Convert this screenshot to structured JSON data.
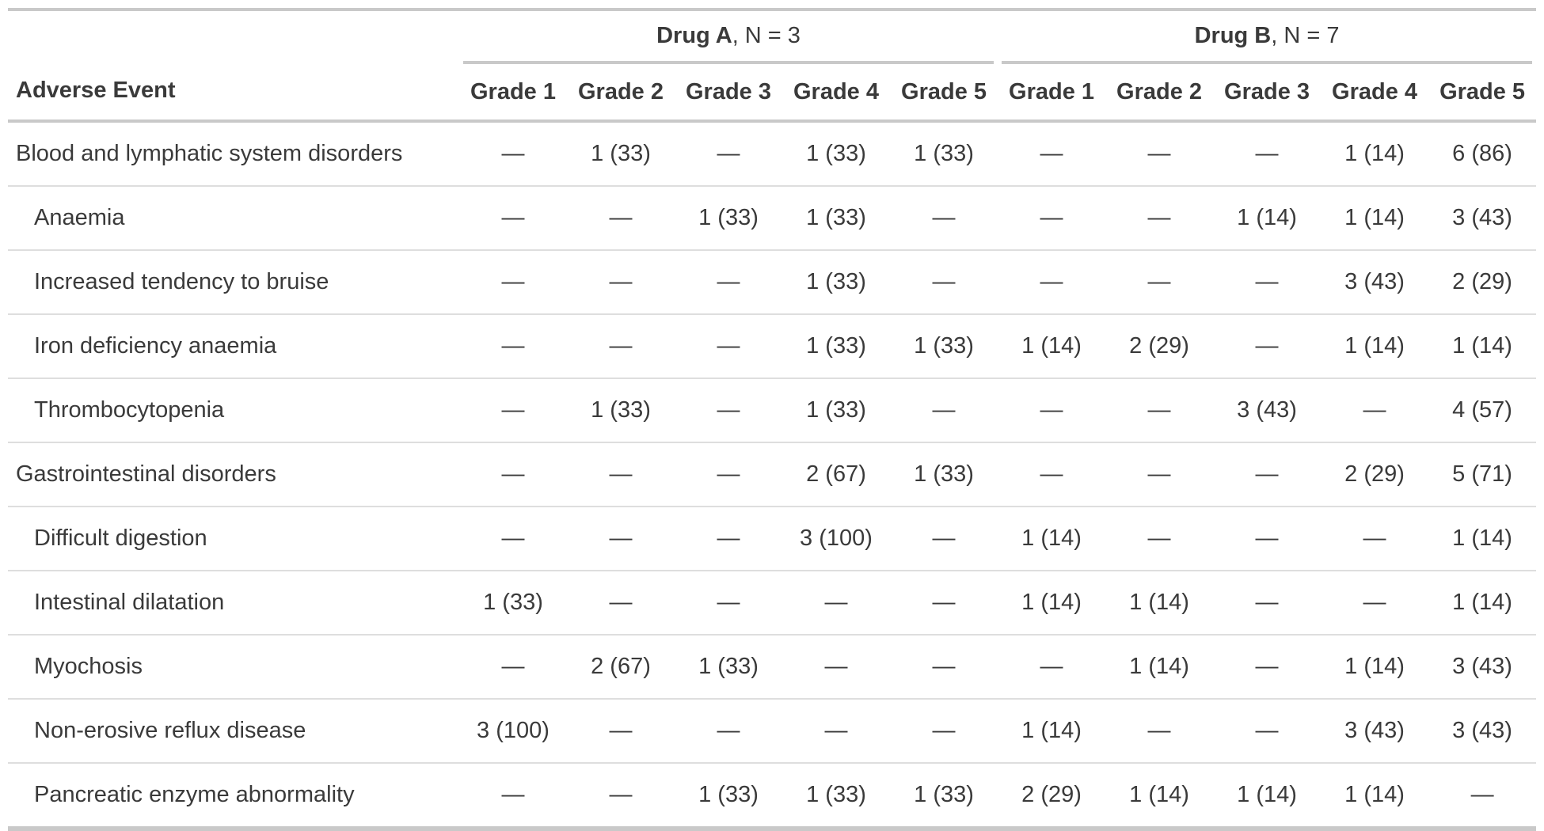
{
  "chart_data": {
    "type": "table",
    "stub_header": "Adverse Event",
    "spanners": [
      {
        "label_bold": "Drug A",
        "label_rest": ", N = 3"
      },
      {
        "label_bold": "Drug B",
        "label_rest": ", N = 7"
      }
    ],
    "grade_labels": [
      "Grade 1",
      "Grade 2",
      "Grade 3",
      "Grade 4",
      "Grade 5"
    ],
    "rows": [
      {
        "label": "Blood and lymphatic system disorders",
        "indent": false,
        "drug_a": [
          "—",
          "1 (33)",
          "—",
          "1 (33)",
          "1 (33)"
        ],
        "drug_b": [
          "—",
          "—",
          "—",
          "1 (14)",
          "6 (86)"
        ]
      },
      {
        "label": "Anaemia",
        "indent": true,
        "drug_a": [
          "—",
          "—",
          "1 (33)",
          "1 (33)",
          "—"
        ],
        "drug_b": [
          "—",
          "—",
          "1 (14)",
          "1 (14)",
          "3 (43)"
        ]
      },
      {
        "label": "Increased tendency to bruise",
        "indent": true,
        "drug_a": [
          "—",
          "—",
          "—",
          "1 (33)",
          "—"
        ],
        "drug_b": [
          "—",
          "—",
          "—",
          "3 (43)",
          "2 (29)"
        ]
      },
      {
        "label": "Iron deficiency anaemia",
        "indent": true,
        "drug_a": [
          "—",
          "—",
          "—",
          "1 (33)",
          "1 (33)"
        ],
        "drug_b": [
          "1 (14)",
          "2 (29)",
          "—",
          "1 (14)",
          "1 (14)"
        ]
      },
      {
        "label": "Thrombocytopenia",
        "indent": true,
        "drug_a": [
          "—",
          "1 (33)",
          "—",
          "1 (33)",
          "—"
        ],
        "drug_b": [
          "—",
          "—",
          "3 (43)",
          "—",
          "4 (57)"
        ]
      },
      {
        "label": "Gastrointestinal disorders",
        "indent": false,
        "drug_a": [
          "—",
          "—",
          "—",
          "2 (67)",
          "1 (33)"
        ],
        "drug_b": [
          "—",
          "—",
          "—",
          "2 (29)",
          "5 (71)"
        ]
      },
      {
        "label": "Difficult digestion",
        "indent": true,
        "drug_a": [
          "—",
          "—",
          "—",
          "3 (100)",
          "—"
        ],
        "drug_b": [
          "1 (14)",
          "—",
          "—",
          "—",
          "1 (14)"
        ]
      },
      {
        "label": "Intestinal dilatation",
        "indent": true,
        "drug_a": [
          "1 (33)",
          "—",
          "—",
          "—",
          "—"
        ],
        "drug_b": [
          "1 (14)",
          "1 (14)",
          "—",
          "—",
          "1 (14)"
        ]
      },
      {
        "label": "Myochosis",
        "indent": true,
        "drug_a": [
          "—",
          "2 (67)",
          "1 (33)",
          "—",
          "—"
        ],
        "drug_b": [
          "—",
          "1 (14)",
          "—",
          "1 (14)",
          "3 (43)"
        ]
      },
      {
        "label": "Non-erosive reflux disease",
        "indent": true,
        "drug_a": [
          "3 (100)",
          "—",
          "—",
          "—",
          "—"
        ],
        "drug_b": [
          "1 (14)",
          "—",
          "—",
          "3 (43)",
          "3 (43)"
        ]
      },
      {
        "label": "Pancreatic enzyme abnormality",
        "indent": true,
        "drug_a": [
          "—",
          "—",
          "1 (33)",
          "1 (33)",
          "1 (33)"
        ],
        "drug_b": [
          "2 (29)",
          "1 (14)",
          "1 (14)",
          "1 (14)",
          "—"
        ]
      }
    ]
  },
  "colors": {
    "text": "#3a3a3a",
    "border_strong": "#c9c9c9",
    "border_light": "#dedede",
    "background": "#ffffff"
  }
}
